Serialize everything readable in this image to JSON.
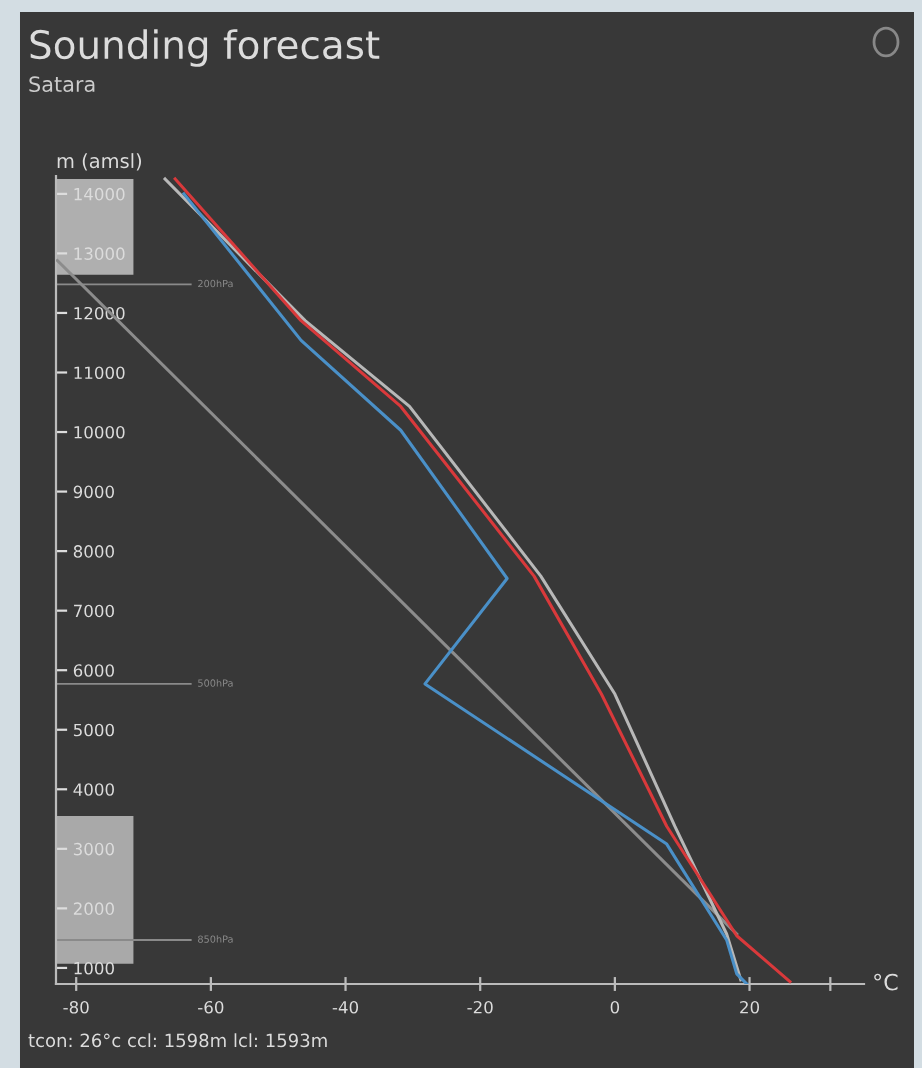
{
  "chart_data": {
    "type": "line",
    "title": "Sounding forecast",
    "subtitle": "Satara",
    "ylabel": "m (amsl)",
    "xlabel": "°C",
    "xlim": [
      -83,
      37
    ],
    "ylim": [
      730,
      14300
    ],
    "xticks": [
      -80,
      -60,
      -40,
      -20,
      0,
      20,
      {
        "value": 32,
        "label": null
      }
    ],
    "yticks": [
      1000,
      2000,
      3000,
      4000,
      5000,
      6000,
      7000,
      8000,
      9000,
      10000,
      11000,
      12000,
      13000,
      14000
    ],
    "grid": false,
    "legend": false,
    "marker": "none",
    "line_style": "solid",
    "series": [
      {
        "color": "#8c8c8c",
        "x": [
          -82.8,
          18.1
        ],
        "values": [
          12880,
          1570
        ]
      },
      {
        "color": "#b8b8b8",
        "x": [
          -66.8,
          -46,
          -30.5,
          -11,
          0,
          8.9,
          16.6,
          18.7
        ],
        "values": [
          14250,
          11870,
          10430,
          7580,
          5600,
          3380,
          1570,
          800
        ]
      },
      {
        "color": "#d9393b",
        "x": [
          -65.3,
          -46.6,
          -31.8,
          -12,
          -2,
          7.7,
          18.1,
          26
        ],
        "values": [
          14250,
          11870,
          10430,
          7580,
          5600,
          3380,
          1540,
          770
        ]
      },
      {
        "color": "#4a90c8",
        "x": [
          -64,
          -46.6,
          -31.8,
          -16,
          -28.2,
          7.7,
          16.6,
          18.1,
          19.6
        ],
        "values": [
          14000,
          11540,
          10030,
          7540,
          5770,
          3080,
          1470,
          900,
          730
        ]
      }
    ],
    "bands": [
      {
        "axis": "y",
        "from": 12640,
        "to": 14250,
        "color": "#c4c4c4"
      },
      {
        "axis": "y",
        "from": 1070,
        "to": 3550,
        "color": "#bdbdbd"
      }
    ],
    "ref_lines": [
      {
        "axis": "y",
        "value": 12480,
        "label": "200hPa",
        "color": "#8a8a8a"
      },
      {
        "axis": "y",
        "value": 5770,
        "label": "500hPa",
        "color": "#8a8a8a"
      },
      {
        "axis": "y",
        "value": 1470,
        "label": "850hPa",
        "color": "#8a8a8a"
      }
    ],
    "annotations": [
      "tcon: 26°c ccl: 1598m lcl: 1593m"
    ]
  }
}
